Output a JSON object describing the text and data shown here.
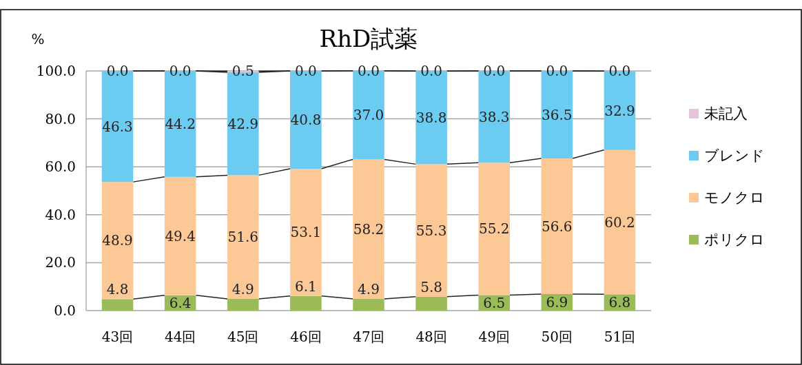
{
  "chart_data": {
    "type": "bar",
    "stacked": true,
    "title": "RhD試薬",
    "ylabel": "%",
    "categories": [
      "43回",
      "44回",
      "45回",
      "46回",
      "47回",
      "48回",
      "49回",
      "50回",
      "51回"
    ],
    "series": [
      {
        "name": "ポリクロ",
        "color": "#9bbb59",
        "values": [
          4.8,
          6.4,
          4.9,
          6.1,
          4.9,
          5.8,
          6.5,
          6.9,
          6.8
        ],
        "value_labels": [
          "4.8",
          "6.4",
          "4.9",
          "6.1",
          "4.9",
          "5.8",
          "6.5",
          "6.9",
          "6.8"
        ]
      },
      {
        "name": "モノクロ",
        "color": "#fcc996",
        "values": [
          48.9,
          49.4,
          51.6,
          53.1,
          58.2,
          55.3,
          55.2,
          56.6,
          60.2
        ],
        "value_labels": [
          "48.9",
          "49.4",
          "51.6",
          "53.1",
          "58.2",
          "55.3",
          "55.2",
          "56.6",
          "60.2"
        ]
      },
      {
        "name": "ブレンド",
        "color": "#6ccbf0",
        "values": [
          46.3,
          44.2,
          42.9,
          40.8,
          37.0,
          38.8,
          38.3,
          36.5,
          32.9
        ],
        "value_labels": [
          "46.3",
          "44.2",
          "42.9",
          "40.8",
          "37.0",
          "38.8",
          "38.3",
          "36.5",
          "32.9"
        ]
      },
      {
        "name": "未記入",
        "color": "#e6c5dc",
        "values": [
          0.0,
          0.0,
          0.5,
          0.0,
          0.0,
          0.0,
          0.0,
          0.0,
          0.0
        ],
        "value_labels": [
          "0.0",
          "0.0",
          "0.5",
          "0.0",
          "0.0",
          "0.0",
          "0.0",
          "0.0",
          "0.0"
        ]
      }
    ],
    "ylim": [
      0,
      100
    ],
    "yticks": [
      {
        "value": 0,
        "label": "0.0"
      },
      {
        "value": 20,
        "label": "20.0"
      },
      {
        "value": 40,
        "label": "40.0"
      },
      {
        "value": 60,
        "label": "60.0"
      },
      {
        "value": 80,
        "label": "80.0"
      },
      {
        "value": 100,
        "label": "100.0"
      }
    ],
    "grid": "y",
    "legend": "right"
  }
}
